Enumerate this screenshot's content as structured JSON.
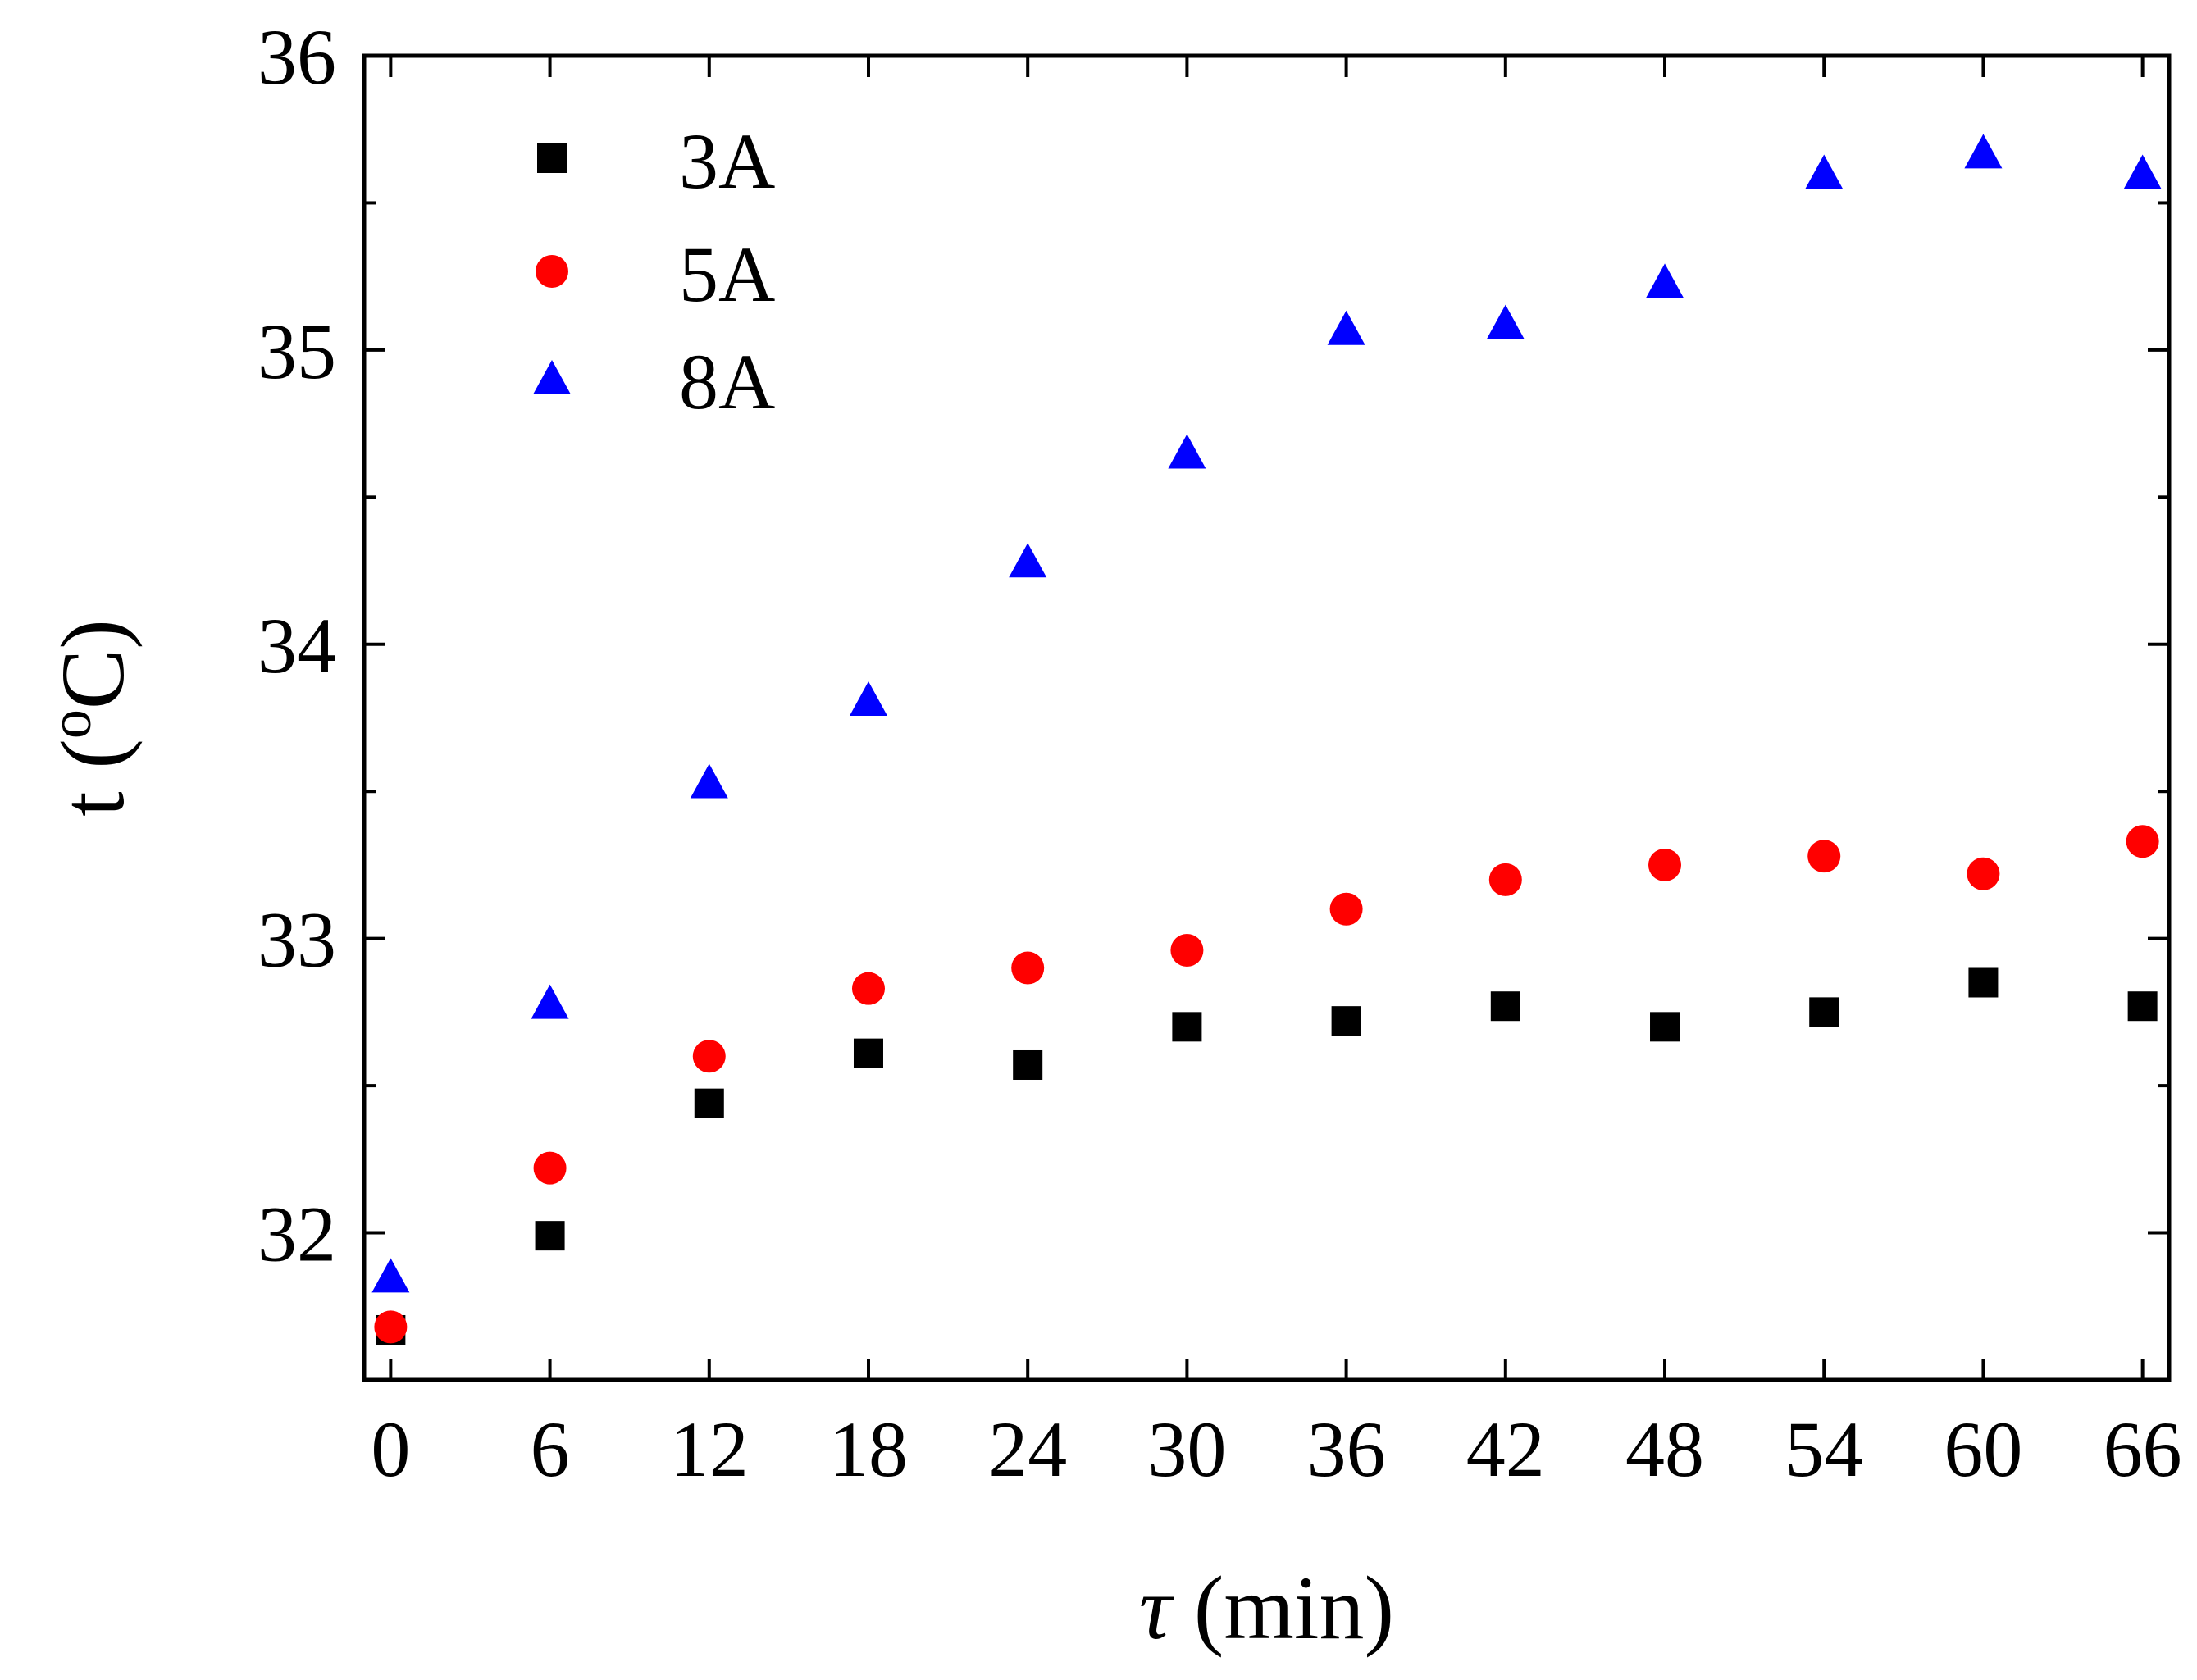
{
  "chart_data": {
    "type": "scatter",
    "title": "",
    "xlabel_symbol": "τ",
    "xlabel_unit": " (min)",
    "ylabel_prefix": "t (",
    "ylabel_superscript": "o",
    "ylabel_suffix": "C)",
    "x": [
      0,
      6,
      12,
      18,
      24,
      30,
      36,
      42,
      48,
      54,
      60,
      66
    ],
    "x_ticks": [
      0,
      6,
      12,
      18,
      24,
      30,
      36,
      42,
      48,
      54,
      60,
      66
    ],
    "y_ticks": [
      32,
      33,
      34,
      35,
      36
    ],
    "y_minor_ticks": [
      31.5,
      32.5,
      33.5,
      34.5,
      35.5
    ],
    "xlim": [
      -1,
      67
    ],
    "ylim": [
      31.5,
      36
    ],
    "grid": false,
    "legend_position": "top-left",
    "series": [
      {
        "name": "3A",
        "marker": "square",
        "color": "#000000",
        "values": [
          31.67,
          31.99,
          32.44,
          32.61,
          32.57,
          32.7,
          32.72,
          32.77,
          32.7,
          32.75,
          32.85,
          32.77
        ]
      },
      {
        "name": "5A",
        "marker": "circle",
        "color": "#ff0000",
        "values": [
          31.68,
          32.22,
          32.6,
          32.83,
          32.9,
          32.96,
          33.1,
          33.2,
          33.25,
          33.28,
          33.22,
          33.33
        ]
      },
      {
        "name": "8A",
        "marker": "triangle",
        "color": "#0000ff",
        "values": [
          31.85,
          32.78,
          33.53,
          33.81,
          34.28,
          34.65,
          35.07,
          35.09,
          35.23,
          35.6,
          35.67,
          35.6
        ]
      }
    ]
  }
}
